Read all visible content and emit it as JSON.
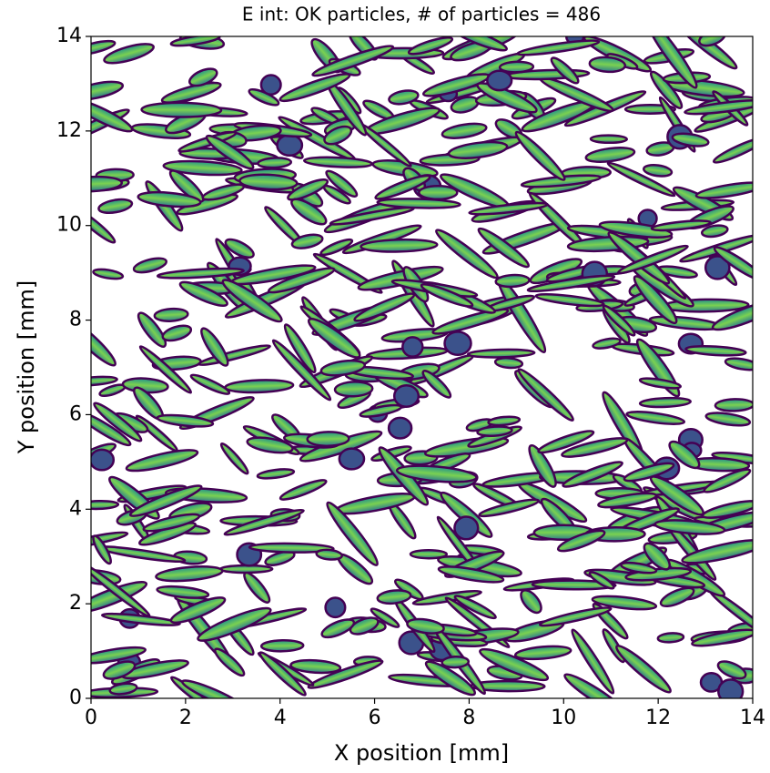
{
  "chart_data": {
    "type": "image",
    "title": "E int: OK particles, # of particles = 486",
    "x_label": "X position [mm]",
    "y_label": "Y position [mm]",
    "xlim": [
      0,
      14
    ],
    "ylim": [
      0,
      14
    ],
    "xticks": [
      0,
      2,
      4,
      6,
      8,
      10,
      12,
      14
    ],
    "yticks": [
      0,
      2,
      4,
      6,
      8,
      10,
      12,
      14
    ],
    "colormap": "viridis"
  }
}
